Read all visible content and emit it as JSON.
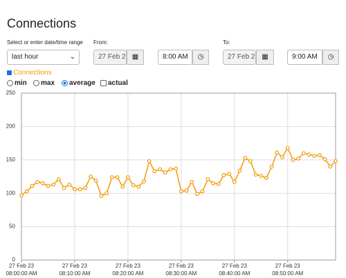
{
  "header": {
    "title": "Connections"
  },
  "controls": {
    "range_label": "Select or enter date/time range",
    "range_value": "last hour",
    "from_label": "From:",
    "from_date": "27 Feb 2",
    "from_time": "8:00 AM",
    "to_label": "To:",
    "to_date": "27 Feb 2",
    "to_time": "9:00 AM",
    "series_toggle": "Connections",
    "options": [
      "min",
      "max",
      "average",
      "actual"
    ],
    "selected_option": "average"
  },
  "chart_data": {
    "type": "line",
    "x": [
      "08:00:00 AM",
      "08:01:00 AM",
      "08:02:00 AM",
      "08:03:00 AM",
      "08:04:00 AM",
      "08:05:00 AM",
      "08:06:00 AM",
      "08:07:00 AM",
      "08:08:00 AM",
      "08:09:00 AM",
      "08:10:00 AM",
      "08:11:00 AM",
      "08:12:00 AM",
      "08:13:00 AM",
      "08:14:00 AM",
      "08:15:00 AM",
      "08:16:00 AM",
      "08:17:00 AM",
      "08:18:00 AM",
      "08:19:00 AM",
      "08:20:00 AM",
      "08:21:00 AM",
      "08:22:00 AM",
      "08:23:00 AM",
      "08:24:00 AM",
      "08:25:00 AM",
      "08:26:00 AM",
      "08:27:00 AM",
      "08:28:00 AM",
      "08:29:00 AM",
      "08:30:00 AM",
      "08:31:00 AM",
      "08:32:00 AM",
      "08:33:00 AM",
      "08:34:00 AM",
      "08:35:00 AM",
      "08:36:00 AM",
      "08:37:00 AM",
      "08:38:00 AM",
      "08:39:00 AM",
      "08:40:00 AM",
      "08:41:00 AM",
      "08:42:00 AM",
      "08:43:00 AM",
      "08:44:00 AM",
      "08:45:00 AM",
      "08:46:00 AM",
      "08:47:00 AM",
      "08:48:00 AM",
      "08:49:00 AM",
      "08:50:00 AM",
      "08:51:00 AM",
      "08:52:00 AM",
      "08:53:00 AM",
      "08:54:00 AM",
      "08:55:00 AM",
      "08:56:00 AM",
      "08:57:00 AM",
      "08:58:00 AM",
      "08:59:00 AM"
    ],
    "series": [
      {
        "name": "Connections",
        "color": "#f29900",
        "values": [
          97,
          103,
          111,
          117,
          115,
          111,
          113,
          121,
          108,
          113,
          106,
          106,
          108,
          125,
          119,
          96,
          100,
          124,
          124,
          110,
          124,
          112,
          110,
          118,
          148,
          133,
          136,
          131,
          136,
          137,
          103,
          104,
          117,
          99,
          103,
          121,
          115,
          114,
          127,
          129,
          117,
          134,
          153,
          148,
          128,
          126,
          123,
          140,
          161,
          154,
          168,
          150,
          152,
          160,
          158,
          156,
          157,
          151,
          140,
          148
        ]
      }
    ],
    "xlim": [
      "08:00:00 AM",
      "08:59:00 AM"
    ],
    "xticks": [
      {
        "date": "27 Feb 23",
        "time": "08:00:00 AM"
      },
      {
        "date": "27 Feb 23",
        "time": "08:10:00 AM"
      },
      {
        "date": "27 Feb 23",
        "time": "08:20:00 AM"
      },
      {
        "date": "27 Feb 23",
        "time": "08:30:00 AM"
      },
      {
        "date": "27 Feb 23",
        "time": "08:40:00 AM"
      },
      {
        "date": "27 Feb 23",
        "time": "08:50:00 AM"
      }
    ],
    "ylim": [
      0,
      250
    ],
    "yticks": [
      0,
      50,
      100,
      150,
      200,
      250
    ],
    "grid": true
  }
}
